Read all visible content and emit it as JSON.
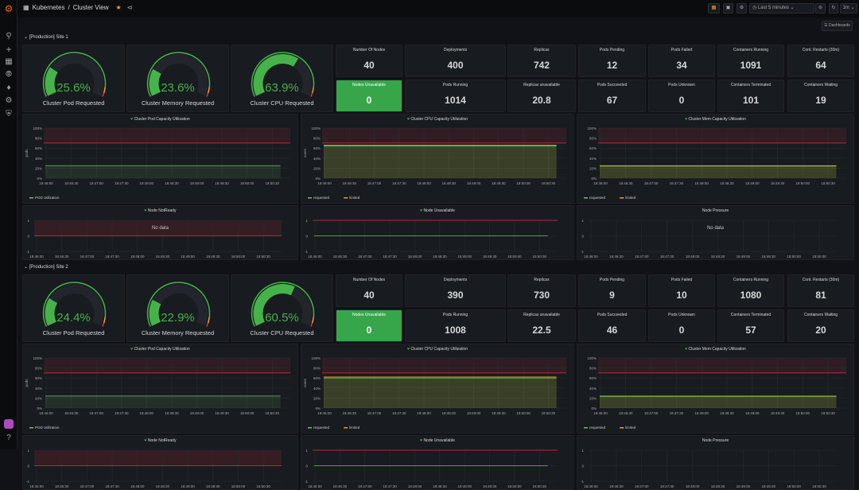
{
  "header": {
    "breadcrumb_folder": "Kubernetes",
    "breadcrumb_sep": "/",
    "dashboard_title": "Cluster View",
    "time_range": "Last 5 minutes",
    "refresh_interval": "1m",
    "dashboards_button": "Dashboards"
  },
  "sidebar": {
    "icons": [
      "search-icon",
      "plus-icon",
      "dashboards-icon",
      "explore-icon",
      "alerting-icon",
      "gear-icon",
      "shield-icon"
    ],
    "bottom_icons": [
      "avatar",
      "help-icon"
    ]
  },
  "colors": {
    "accent_green": "#46b34a",
    "threshold_red": "#e02f44",
    "limited_yellow": "#e5ac0e",
    "panel_bg": "#181b1f"
  },
  "time_ticks": [
    "18:46:00",
    "18:46:30",
    "18:47:00",
    "18:47:30",
    "18:48:00",
    "18:48:30",
    "18:49:00",
    "18:49:30",
    "18:50:00",
    "18:50:30"
  ],
  "pct_ticks": [
    "0%",
    "20%",
    "40%",
    "60%",
    "80%",
    "100%"
  ],
  "node_ticks": [
    "-1",
    "0",
    "1"
  ],
  "sections": [
    {
      "title": "[Production] Site 1",
      "gauges": [
        {
          "label": "Cluster Pod Requested",
          "value": 25.6,
          "display": "25.6%"
        },
        {
          "label": "Cluster Memory Requested",
          "value": 23.6,
          "display": "23.6%"
        },
        {
          "label": "Cluster CPU Requested",
          "value": 63.9,
          "display": "63.9%"
        }
      ],
      "stats": [
        {
          "label": "Number Of Nodes",
          "value": "40"
        },
        {
          "label": "Deployments",
          "value": "400"
        },
        {
          "label": "Replicas",
          "value": "742"
        },
        {
          "label": "Pods Pending",
          "value": "12"
        },
        {
          "label": "Pods Failed",
          "value": "34"
        },
        {
          "label": "Containers Running",
          "value": "1091"
        },
        {
          "label": "Cont. Restarts (30m)",
          "value": "64"
        },
        {
          "label": "Nodes Unavailable",
          "value": "0",
          "highlight": true
        },
        {
          "label": "Pods Running",
          "value": "1014"
        },
        {
          "label": "Replicas unavailable",
          "value": "20.8"
        },
        {
          "label": "Pods Succeeded",
          "value": "67"
        },
        {
          "label": "Pods Unknown",
          "value": "0"
        },
        {
          "label": "Containers Terminated",
          "value": "101"
        },
        {
          "label": "Containers Waiting",
          "value": "19"
        }
      ],
      "charts": [
        {
          "title": "Cluster Pod Capacity Utilization",
          "ylabel": "pods",
          "threshold": 70,
          "series": [
            {
              "name": "POD Utilization",
              "value": 25,
              "color": "#73bf69"
            }
          ]
        },
        {
          "title": "Cluster CPU Capacity Utilization",
          "ylabel": "cores",
          "threshold": 70,
          "series": [
            {
              "name": "requested",
              "value": 64,
              "color": "#73bf69"
            },
            {
              "name": "limited",
              "value": 66,
              "color": "#e5ac0e"
            }
          ]
        },
        {
          "title": "Cluster Mem Capacity Utilization",
          "ylabel": "",
          "threshold": 70,
          "series": [
            {
              "name": "requested",
              "value": 24,
              "color": "#73bf69"
            },
            {
              "name": "limited",
              "value": 25,
              "color": "#e5ac0e"
            }
          ]
        }
      ],
      "node_panels": [
        {
          "title": "Node NotReady",
          "no_data": "No data",
          "mode": "notready"
        },
        {
          "title": "Node Unavailable",
          "mode": "unavail"
        },
        {
          "title": "Node Pressure",
          "no_data": "No data",
          "mode": "none"
        }
      ]
    },
    {
      "title": "[Production] Site 2",
      "gauges": [
        {
          "label": "Cluster Pod Requested",
          "value": 24.4,
          "display": "24.4%"
        },
        {
          "label": "Cluster Memory Requested",
          "value": 22.9,
          "display": "22.9%"
        },
        {
          "label": "Cluster CPU Requested",
          "value": 60.5,
          "display": "60.5%"
        }
      ],
      "stats": [
        {
          "label": "Number Of Nodes",
          "value": "40"
        },
        {
          "label": "Deployments",
          "value": "390"
        },
        {
          "label": "Replicas",
          "value": "730"
        },
        {
          "label": "Pods Pending",
          "value": "9"
        },
        {
          "label": "Pods Failed",
          "value": "10"
        },
        {
          "label": "Containers Running",
          "value": "1080"
        },
        {
          "label": "Cont. Restarts (30m)",
          "value": "81"
        },
        {
          "label": "Nodes Unavailable",
          "value": "0",
          "highlight": true
        },
        {
          "label": "Pods Running",
          "value": "1008"
        },
        {
          "label": "Replicas unavailable",
          "value": "22.5"
        },
        {
          "label": "Pods Succeeded",
          "value": "46"
        },
        {
          "label": "Pods Unknown",
          "value": "0"
        },
        {
          "label": "Containers Terminated",
          "value": "57"
        },
        {
          "label": "Containers Waiting",
          "value": "20"
        }
      ],
      "charts": [
        {
          "title": "Cluster Pod Capacity Utilization",
          "ylabel": "pods",
          "threshold": 70,
          "series": [
            {
              "name": "POD Utilization",
              "value": 24,
              "color": "#73bf69"
            }
          ]
        },
        {
          "title": "Cluster CPU Capacity Utilization",
          "ylabel": "cores",
          "threshold": 70,
          "series": [
            {
              "name": "requested",
              "value": 60,
              "color": "#73bf69"
            },
            {
              "name": "limited",
              "value": 62,
              "color": "#e5ac0e"
            }
          ]
        },
        {
          "title": "Cluster Mem Capacity Utilization",
          "ylabel": "",
          "threshold": 70,
          "series": [
            {
              "name": "requested",
              "value": 23,
              "color": "#73bf69"
            },
            {
              "name": "limited",
              "value": 24,
              "color": "#e5ac0e"
            }
          ]
        }
      ],
      "node_panels": [
        {
          "title": "Node NotReady",
          "mode": "notready"
        },
        {
          "title": "Node Unavailable",
          "mode": "unavail"
        },
        {
          "title": "Node Pressure",
          "mode": "none"
        }
      ]
    }
  ]
}
